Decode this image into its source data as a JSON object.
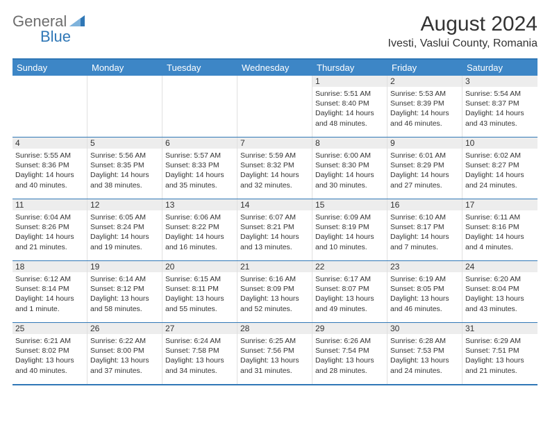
{
  "logo": {
    "part1": "General",
    "part2": "Blue"
  },
  "title": "August 2024",
  "location": "Ivesti, Vaslui County, Romania",
  "dayHeaders": [
    "Sunday",
    "Monday",
    "Tuesday",
    "Wednesday",
    "Thursday",
    "Friday",
    "Saturday"
  ],
  "colors": {
    "accent": "#2f77b6",
    "headerBg": "#3d86c6",
    "dayNumBg": "#ededed",
    "text": "#333333",
    "logoGray": "#6d6d6d"
  },
  "weeks": [
    [
      {
        "num": "",
        "lines": []
      },
      {
        "num": "",
        "lines": []
      },
      {
        "num": "",
        "lines": []
      },
      {
        "num": "",
        "lines": []
      },
      {
        "num": "1",
        "lines": [
          "Sunrise: 5:51 AM",
          "Sunset: 8:40 PM",
          "Daylight: 14 hours",
          "and 48 minutes."
        ]
      },
      {
        "num": "2",
        "lines": [
          "Sunrise: 5:53 AM",
          "Sunset: 8:39 PM",
          "Daylight: 14 hours",
          "and 46 minutes."
        ]
      },
      {
        "num": "3",
        "lines": [
          "Sunrise: 5:54 AM",
          "Sunset: 8:37 PM",
          "Daylight: 14 hours",
          "and 43 minutes."
        ]
      }
    ],
    [
      {
        "num": "4",
        "lines": [
          "Sunrise: 5:55 AM",
          "Sunset: 8:36 PM",
          "Daylight: 14 hours",
          "and 40 minutes."
        ]
      },
      {
        "num": "5",
        "lines": [
          "Sunrise: 5:56 AM",
          "Sunset: 8:35 PM",
          "Daylight: 14 hours",
          "and 38 minutes."
        ]
      },
      {
        "num": "6",
        "lines": [
          "Sunrise: 5:57 AM",
          "Sunset: 8:33 PM",
          "Daylight: 14 hours",
          "and 35 minutes."
        ]
      },
      {
        "num": "7",
        "lines": [
          "Sunrise: 5:59 AM",
          "Sunset: 8:32 PM",
          "Daylight: 14 hours",
          "and 32 minutes."
        ]
      },
      {
        "num": "8",
        "lines": [
          "Sunrise: 6:00 AM",
          "Sunset: 8:30 PM",
          "Daylight: 14 hours",
          "and 30 minutes."
        ]
      },
      {
        "num": "9",
        "lines": [
          "Sunrise: 6:01 AM",
          "Sunset: 8:29 PM",
          "Daylight: 14 hours",
          "and 27 minutes."
        ]
      },
      {
        "num": "10",
        "lines": [
          "Sunrise: 6:02 AM",
          "Sunset: 8:27 PM",
          "Daylight: 14 hours",
          "and 24 minutes."
        ]
      }
    ],
    [
      {
        "num": "11",
        "lines": [
          "Sunrise: 6:04 AM",
          "Sunset: 8:26 PM",
          "Daylight: 14 hours",
          "and 21 minutes."
        ]
      },
      {
        "num": "12",
        "lines": [
          "Sunrise: 6:05 AM",
          "Sunset: 8:24 PM",
          "Daylight: 14 hours",
          "and 19 minutes."
        ]
      },
      {
        "num": "13",
        "lines": [
          "Sunrise: 6:06 AM",
          "Sunset: 8:22 PM",
          "Daylight: 14 hours",
          "and 16 minutes."
        ]
      },
      {
        "num": "14",
        "lines": [
          "Sunrise: 6:07 AM",
          "Sunset: 8:21 PM",
          "Daylight: 14 hours",
          "and 13 minutes."
        ]
      },
      {
        "num": "15",
        "lines": [
          "Sunrise: 6:09 AM",
          "Sunset: 8:19 PM",
          "Daylight: 14 hours",
          "and 10 minutes."
        ]
      },
      {
        "num": "16",
        "lines": [
          "Sunrise: 6:10 AM",
          "Sunset: 8:17 PM",
          "Daylight: 14 hours",
          "and 7 minutes."
        ]
      },
      {
        "num": "17",
        "lines": [
          "Sunrise: 6:11 AM",
          "Sunset: 8:16 PM",
          "Daylight: 14 hours",
          "and 4 minutes."
        ]
      }
    ],
    [
      {
        "num": "18",
        "lines": [
          "Sunrise: 6:12 AM",
          "Sunset: 8:14 PM",
          "Daylight: 14 hours",
          "and 1 minute."
        ]
      },
      {
        "num": "19",
        "lines": [
          "Sunrise: 6:14 AM",
          "Sunset: 8:12 PM",
          "Daylight: 13 hours",
          "and 58 minutes."
        ]
      },
      {
        "num": "20",
        "lines": [
          "Sunrise: 6:15 AM",
          "Sunset: 8:11 PM",
          "Daylight: 13 hours",
          "and 55 minutes."
        ]
      },
      {
        "num": "21",
        "lines": [
          "Sunrise: 6:16 AM",
          "Sunset: 8:09 PM",
          "Daylight: 13 hours",
          "and 52 minutes."
        ]
      },
      {
        "num": "22",
        "lines": [
          "Sunrise: 6:17 AM",
          "Sunset: 8:07 PM",
          "Daylight: 13 hours",
          "and 49 minutes."
        ]
      },
      {
        "num": "23",
        "lines": [
          "Sunrise: 6:19 AM",
          "Sunset: 8:05 PM",
          "Daylight: 13 hours",
          "and 46 minutes."
        ]
      },
      {
        "num": "24",
        "lines": [
          "Sunrise: 6:20 AM",
          "Sunset: 8:04 PM",
          "Daylight: 13 hours",
          "and 43 minutes."
        ]
      }
    ],
    [
      {
        "num": "25",
        "lines": [
          "Sunrise: 6:21 AM",
          "Sunset: 8:02 PM",
          "Daylight: 13 hours",
          "and 40 minutes."
        ]
      },
      {
        "num": "26",
        "lines": [
          "Sunrise: 6:22 AM",
          "Sunset: 8:00 PM",
          "Daylight: 13 hours",
          "and 37 minutes."
        ]
      },
      {
        "num": "27",
        "lines": [
          "Sunrise: 6:24 AM",
          "Sunset: 7:58 PM",
          "Daylight: 13 hours",
          "and 34 minutes."
        ]
      },
      {
        "num": "28",
        "lines": [
          "Sunrise: 6:25 AM",
          "Sunset: 7:56 PM",
          "Daylight: 13 hours",
          "and 31 minutes."
        ]
      },
      {
        "num": "29",
        "lines": [
          "Sunrise: 6:26 AM",
          "Sunset: 7:54 PM",
          "Daylight: 13 hours",
          "and 28 minutes."
        ]
      },
      {
        "num": "30",
        "lines": [
          "Sunrise: 6:28 AM",
          "Sunset: 7:53 PM",
          "Daylight: 13 hours",
          "and 24 minutes."
        ]
      },
      {
        "num": "31",
        "lines": [
          "Sunrise: 6:29 AM",
          "Sunset: 7:51 PM",
          "Daylight: 13 hours",
          "and 21 minutes."
        ]
      }
    ]
  ]
}
